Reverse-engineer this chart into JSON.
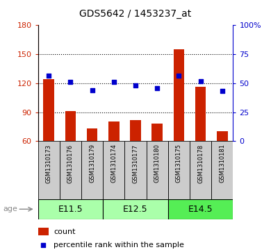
{
  "title": "GDS5642 / 1453237_at",
  "samples": [
    "GSM1310173",
    "GSM1310176",
    "GSM1310179",
    "GSM1310174",
    "GSM1310177",
    "GSM1310180",
    "GSM1310175",
    "GSM1310178",
    "GSM1310181"
  ],
  "counts": [
    124,
    91,
    73,
    80,
    82,
    78,
    155,
    116,
    70
  ],
  "percentiles_left_scale": [
    128,
    121,
    113,
    121,
    118,
    115,
    128,
    122,
    112
  ],
  "ylim_left": [
    60,
    180
  ],
  "ylim_right": [
    0,
    100
  ],
  "yticks_left": [
    60,
    90,
    120,
    150,
    180
  ],
  "yticks_right": [
    0,
    25,
    50,
    75,
    100
  ],
  "yticklabels_right": [
    "0",
    "25",
    "50",
    "75",
    "100%"
  ],
  "bar_color": "#cc2200",
  "dot_color": "#0000cc",
  "age_groups": [
    {
      "label": "E11.5",
      "start": 0,
      "end": 3,
      "color": "#aaffaa"
    },
    {
      "label": "E12.5",
      "start": 3,
      "end": 6,
      "color": "#aaffaa"
    },
    {
      "label": "E14.5",
      "start": 6,
      "end": 9,
      "color": "#55ee55"
    }
  ],
  "grid_yticks": [
    90,
    120,
    150
  ],
  "bar_width": 0.5,
  "legend_count_label": "count",
  "legend_percentile_label": "percentile rank within the sample",
  "age_label": "age",
  "sample_box_color": "#cccccc",
  "title_fontsize": 10,
  "tick_fontsize": 8,
  "sample_fontsize": 6,
  "age_fontsize": 9
}
